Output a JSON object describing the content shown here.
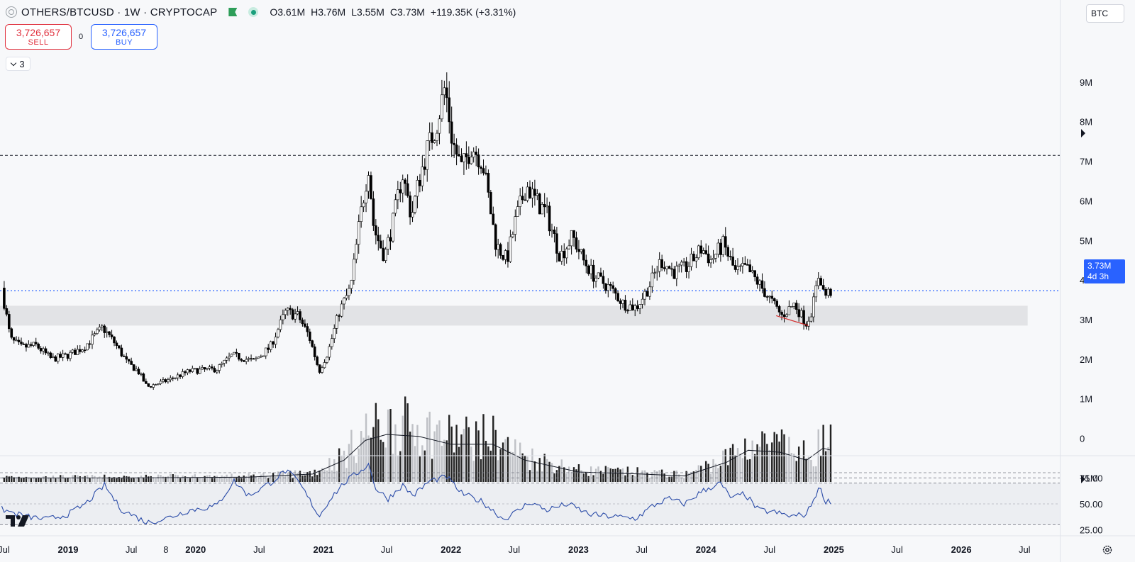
{
  "header": {
    "symbol_title": "OTHERS/BTCUSD · 1W · CRYPTOCAP",
    "ohlc": [
      {
        "key": "O",
        "value": "3.61M"
      },
      {
        "key": "H",
        "value": "3.76M"
      },
      {
        "key": "L",
        "value": "3.55M"
      },
      {
        "key": "C",
        "value": "3.73M"
      },
      {
        "key": "",
        "value": "+119.35K (+3.31%)"
      }
    ]
  },
  "trade": {
    "sell_price": "3,726,657",
    "sell_label": "SELL",
    "spread": "0",
    "buy_price": "3,726,657",
    "buy_label": "BUY"
  },
  "indicators_toggle": {
    "count": "3"
  },
  "price_scale": {
    "unit": "BTC",
    "last_value": "3.73M",
    "countdown": "4d 3h"
  },
  "colors": {
    "up": "#ffffff",
    "down": "#000000",
    "wick": "#000000",
    "last_price_line": "#2962ff",
    "rsi_line": "#2a4ba8",
    "support_zone": "#e2e3e6",
    "divergence_line": "#d32f2f"
  },
  "chart_data": [
    {
      "type": "candlestick",
      "interval": "1W",
      "y_axis": {
        "ticks": [
          "−1M",
          "0",
          "1M",
          "2M",
          "3M",
          "4M",
          "5M",
          "6M",
          "7M",
          "8M",
          "9M"
        ],
        "tick_values": [
          -1,
          0,
          1,
          2,
          3,
          4,
          5,
          6,
          7,
          8,
          9
        ],
        "range": [
          -1.1,
          10.0
        ],
        "unit": "M"
      },
      "x_axis": {
        "ticks": [
          {
            "label": "Jul",
            "date": "2018-07-01"
          },
          {
            "label": "2019",
            "date": "2019-01-01"
          },
          {
            "label": "Jul",
            "date": "2019-07-01"
          },
          {
            "label": "8",
            "date": "2019-10-08"
          },
          {
            "label": "2020",
            "date": "2020-01-01"
          },
          {
            "label": "Jul",
            "date": "2020-07-01"
          },
          {
            "label": "2021",
            "date": "2021-01-01"
          },
          {
            "label": "Jul",
            "date": "2021-07-01"
          },
          {
            "label": "2022",
            "date": "2022-01-01"
          },
          {
            "label": "Jul",
            "date": "2022-07-01"
          },
          {
            "label": "2023",
            "date": "2023-01-01"
          },
          {
            "label": "Jul",
            "date": "2023-07-01"
          },
          {
            "label": "2024",
            "date": "2024-01-01"
          },
          {
            "label": "Jul",
            "date": "2024-07-01"
          },
          {
            "label": "2025",
            "date": "2025-01-01"
          },
          {
            "label": "Jul",
            "date": "2025-07-01"
          },
          {
            "label": "2026",
            "date": "2026-01-01"
          },
          {
            "label": "Jul",
            "date": "2026-07-01"
          }
        ],
        "range": [
          "2018-06-20",
          "2026-10-10"
        ]
      },
      "price_path": [
        [
          "2018-06-25",
          3.8
        ],
        [
          "2018-07-20",
          2.5
        ],
        [
          "2018-08-20",
          2.3
        ],
        [
          "2018-10-01",
          2.35
        ],
        [
          "2018-11-15",
          2.0
        ],
        [
          "2019-01-01",
          2.1
        ],
        [
          "2019-02-15",
          2.3
        ],
        [
          "2019-04-10",
          2.8
        ],
        [
          "2019-05-15",
          2.4
        ],
        [
          "2019-06-20",
          1.9
        ],
        [
          "2019-07-20",
          1.7
        ],
        [
          "2019-08-15",
          1.3
        ],
        [
          "2019-10-08",
          1.45
        ],
        [
          "2019-12-15",
          1.7
        ],
        [
          "2020-03-01",
          1.75
        ],
        [
          "2020-04-15",
          2.1
        ],
        [
          "2020-06-15",
          1.95
        ],
        [
          "2020-08-01",
          2.3
        ],
        [
          "2020-09-15",
          3.2
        ],
        [
          "2020-10-20",
          3.1
        ],
        [
          "2020-11-20",
          2.6
        ],
        [
          "2020-12-20",
          1.7
        ],
        [
          "2021-01-15",
          2.2
        ],
        [
          "2021-02-15",
          3.2
        ],
        [
          "2021-03-20",
          3.8
        ],
        [
          "2021-04-15",
          5.5
        ],
        [
          "2021-05-10",
          6.9
        ],
        [
          "2021-05-25",
          5.3
        ],
        [
          "2021-06-25",
          4.6
        ],
        [
          "2021-07-20",
          5.5
        ],
        [
          "2021-08-15",
          6.7
        ],
        [
          "2021-09-10",
          5.6
        ],
        [
          "2021-10-01",
          6.5
        ],
        [
          "2021-10-25",
          7.3
        ],
        [
          "2021-11-20",
          7.9
        ],
        [
          "2021-12-15",
          8.9
        ],
        [
          "2022-01-05",
          7.5
        ],
        [
          "2022-02-01",
          6.8
        ],
        [
          "2022-03-01",
          7.4
        ],
        [
          "2022-04-01",
          7.0
        ],
        [
          "2022-04-20",
          6.0
        ],
        [
          "2022-05-10",
          4.9
        ],
        [
          "2022-06-10",
          4.5
        ],
        [
          "2022-07-05",
          5.5
        ],
        [
          "2022-08-05",
          6.4
        ],
        [
          "2022-09-01",
          6.0
        ],
        [
          "2022-10-01",
          5.7
        ],
        [
          "2022-11-10",
          4.6
        ],
        [
          "2022-12-15",
          5.1
        ],
        [
          "2023-01-15",
          4.5
        ],
        [
          "2023-02-15",
          4.1
        ],
        [
          "2023-04-01",
          3.8
        ],
        [
          "2023-05-10",
          3.4
        ],
        [
          "2023-06-15",
          3.3
        ],
        [
          "2023-07-20",
          3.8
        ],
        [
          "2023-08-25",
          4.5
        ],
        [
          "2023-10-01",
          4.2
        ],
        [
          "2023-11-05",
          4.3
        ],
        [
          "2023-12-20",
          4.8
        ],
        [
          "2024-01-15",
          4.5
        ],
        [
          "2024-02-20",
          4.9
        ],
        [
          "2024-03-25",
          4.2
        ],
        [
          "2024-04-25",
          4.3
        ],
        [
          "2024-06-01",
          3.9
        ],
        [
          "2024-06-25",
          3.6
        ],
        [
          "2024-08-05",
          3.1
        ],
        [
          "2024-09-10",
          3.4
        ],
        [
          "2024-10-15",
          2.9
        ],
        [
          "2024-11-01",
          3.3
        ],
        [
          "2024-11-20",
          4.2
        ],
        [
          "2024-12-05",
          3.6
        ],
        [
          "2024-12-25",
          3.73
        ]
      ],
      "last_price": 3.73,
      "horizontal_line": 7.15,
      "support_zone": {
        "y_from": 2.85,
        "y_to": 3.35,
        "x_from": "2018-06-20",
        "x_to": "2026-07-10"
      },
      "divergence_line": {
        "from": [
          "2024-07-20",
          3.1
        ],
        "to": [
          "2024-10-20",
          2.85
        ]
      },
      "volume": {
        "average_path": [
          [
            "2018-06-25",
            -1.0
          ],
          [
            "2019-06-01",
            -1.0
          ],
          [
            "2020-06-01",
            -0.98
          ],
          [
            "2020-12-01",
            -0.9
          ],
          [
            "2021-03-01",
            -0.55
          ],
          [
            "2021-05-01",
            -0.05
          ],
          [
            "2021-07-01",
            0.1
          ],
          [
            "2021-10-01",
            0.05
          ],
          [
            "2022-01-01",
            -0.15
          ],
          [
            "2022-05-01",
            -0.15
          ],
          [
            "2022-08-01",
            -0.55
          ],
          [
            "2023-01-01",
            -0.85
          ],
          [
            "2023-07-01",
            -0.9
          ],
          [
            "2023-11-01",
            -0.95
          ],
          [
            "2024-03-01",
            -0.6
          ],
          [
            "2024-05-01",
            -0.3
          ],
          [
            "2024-08-01",
            -0.35
          ],
          [
            "2024-10-15",
            -0.55
          ],
          [
            "2024-12-01",
            -0.25
          ],
          [
            "2024-12-25",
            -0.3
          ]
        ]
      }
    },
    {
      "type": "line",
      "name": "",
      "y_axis": {
        "ticks": [
          "25.00",
          "50.00",
          "75.00"
        ],
        "tick_values": [
          25,
          50,
          75
        ],
        "range": [
          20,
          95
        ]
      },
      "levels": [
        70,
        30
      ],
      "extra_levels": [
        80,
        75
      ],
      "series_path": [
        [
          "2018-06-25",
          45
        ],
        [
          "2018-07-20",
          42
        ],
        [
          "2018-09-01",
          38
        ],
        [
          "2018-11-01",
          35
        ],
        [
          "2019-01-01",
          40
        ],
        [
          "2019-02-20",
          50
        ],
        [
          "2019-04-15",
          68
        ],
        [
          "2019-06-01",
          45
        ],
        [
          "2019-08-15",
          32
        ],
        [
          "2019-10-08",
          36
        ],
        [
          "2019-12-15",
          44
        ],
        [
          "2020-03-01",
          48
        ],
        [
          "2020-04-20",
          72
        ],
        [
          "2020-06-01",
          58
        ],
        [
          "2020-08-01",
          70
        ],
        [
          "2020-09-15",
          82
        ],
        [
          "2020-10-20",
          72
        ],
        [
          "2020-11-20",
          55
        ],
        [
          "2020-12-20",
          38
        ],
        [
          "2021-01-20",
          55
        ],
        [
          "2021-03-01",
          70
        ],
        [
          "2021-05-10",
          88
        ],
        [
          "2021-06-01",
          64
        ],
        [
          "2021-07-05",
          55
        ],
        [
          "2021-08-15",
          68
        ],
        [
          "2021-09-15",
          58
        ],
        [
          "2021-11-01",
          72
        ],
        [
          "2021-12-20",
          76
        ],
        [
          "2022-02-01",
          60
        ],
        [
          "2022-04-01",
          52
        ],
        [
          "2022-06-01",
          35
        ],
        [
          "2022-07-15",
          44
        ],
        [
          "2022-08-15",
          52
        ],
        [
          "2022-10-01",
          44
        ],
        [
          "2022-12-01",
          50
        ],
        [
          "2023-02-01",
          40
        ],
        [
          "2023-04-01",
          38
        ],
        [
          "2023-06-15",
          36
        ],
        [
          "2023-08-01",
          48
        ],
        [
          "2023-09-15",
          55
        ],
        [
          "2023-11-01",
          50
        ],
        [
          "2023-12-20",
          62
        ],
        [
          "2024-02-10",
          70
        ],
        [
          "2024-03-15",
          55
        ],
        [
          "2024-04-20",
          60
        ],
        [
          "2024-05-30",
          44
        ],
        [
          "2024-07-15",
          42
        ],
        [
          "2024-09-01",
          38
        ],
        [
          "2024-10-15",
          40
        ],
        [
          "2024-11-20",
          66
        ],
        [
          "2024-12-10",
          52
        ],
        [
          "2024-12-25",
          53
        ]
      ]
    }
  ]
}
